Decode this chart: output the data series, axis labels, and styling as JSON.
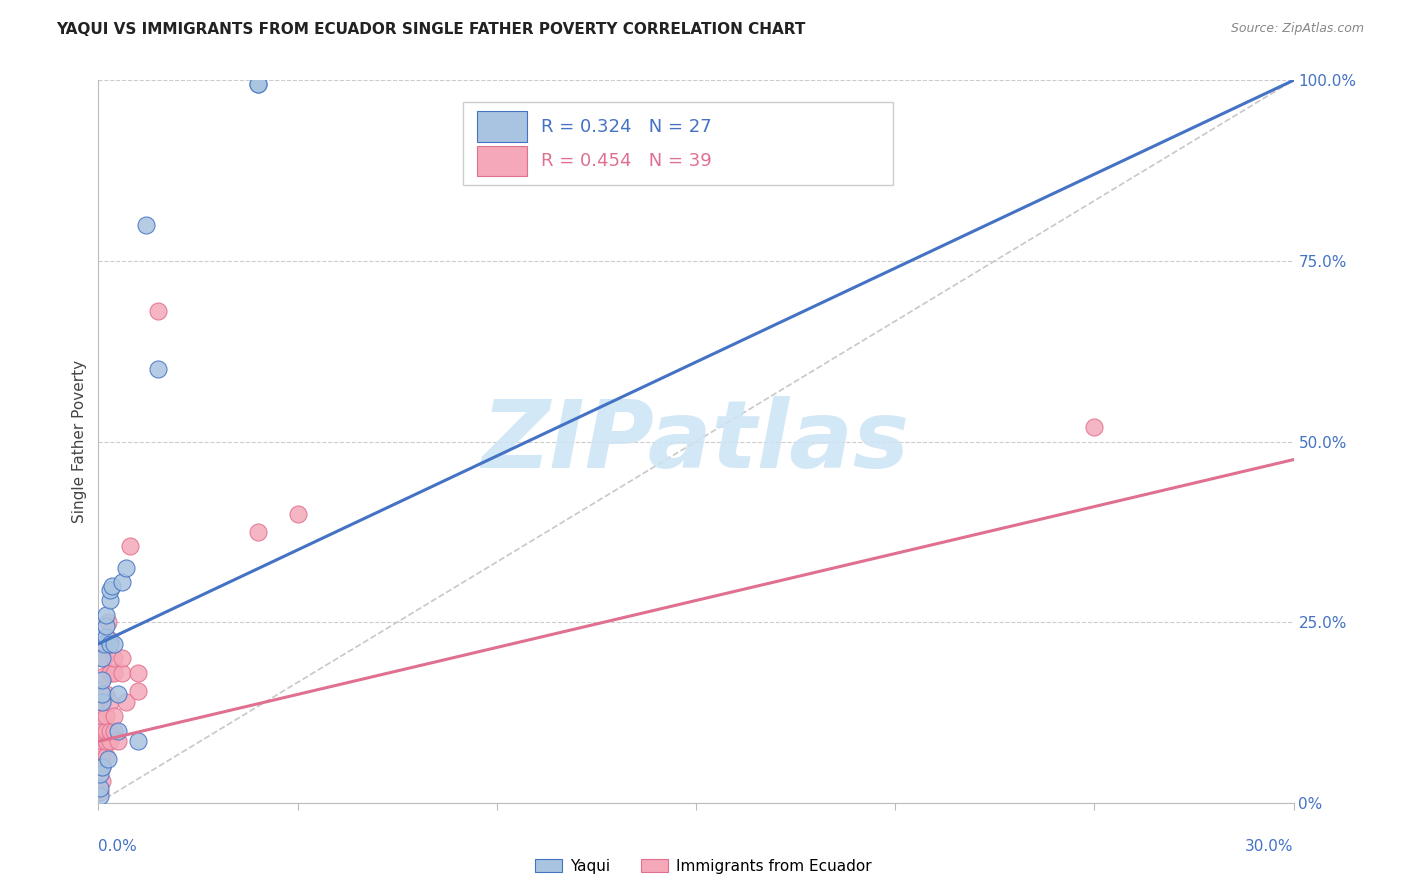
{
  "title": "YAQUI VS IMMIGRANTS FROM ECUADOR SINGLE FATHER POVERTY CORRELATION CHART",
  "source": "Source: ZipAtlas.com",
  "ylabel": "Single Father Poverty",
  "ylabel_right_labels": [
    "0%",
    "25.0%",
    "50.0%",
    "75.0%",
    "100.0%"
  ],
  "ylabel_right_values": [
    0.0,
    0.25,
    0.5,
    0.75,
    1.0
  ],
  "xmin": 0.0,
  "xmax": 0.3,
  "ymin": 0.0,
  "ymax": 1.0,
  "yaqui_R": 0.324,
  "yaqui_N": 27,
  "ecuador_R": 0.454,
  "ecuador_N": 39,
  "yaqui_color": "#a8c4e0",
  "ecuador_color": "#f4a8b8",
  "yaqui_line_color": "#4472c4",
  "ecuador_line_color": "#e07090",
  "diagonal_color": "#c8c8c8",
  "yaqui_line": [
    0.0,
    0.22,
    0.3,
    1.0
  ],
  "ecuador_line": [
    0.0,
    0.085,
    0.3,
    0.475
  ],
  "yaqui_points": [
    [
      0.0005,
      0.01
    ],
    [
      0.0005,
      0.02
    ],
    [
      0.0005,
      0.04
    ],
    [
      0.001,
      0.05
    ],
    [
      0.001,
      0.14
    ],
    [
      0.001,
      0.15
    ],
    [
      0.001,
      0.17
    ],
    [
      0.001,
      0.2
    ],
    [
      0.0015,
      0.22
    ],
    [
      0.002,
      0.23
    ],
    [
      0.002,
      0.245
    ],
    [
      0.002,
      0.26
    ],
    [
      0.0025,
      0.06
    ],
    [
      0.003,
      0.22
    ],
    [
      0.003,
      0.28
    ],
    [
      0.003,
      0.295
    ],
    [
      0.0035,
      0.3
    ],
    [
      0.004,
      0.22
    ],
    [
      0.005,
      0.1
    ],
    [
      0.005,
      0.15
    ],
    [
      0.006,
      0.305
    ],
    [
      0.007,
      0.325
    ],
    [
      0.01,
      0.085
    ],
    [
      0.012,
      0.8
    ],
    [
      0.015,
      0.6
    ],
    [
      0.04,
      0.995
    ],
    [
      0.04,
      0.995
    ]
  ],
  "ecuador_points": [
    [
      0.0005,
      0.015
    ],
    [
      0.001,
      0.03
    ],
    [
      0.001,
      0.05
    ],
    [
      0.001,
      0.065
    ],
    [
      0.001,
      0.075
    ],
    [
      0.001,
      0.085
    ],
    [
      0.001,
      0.1
    ],
    [
      0.001,
      0.12
    ],
    [
      0.001,
      0.14
    ],
    [
      0.0015,
      0.175
    ],
    [
      0.0015,
      0.2
    ],
    [
      0.002,
      0.065
    ],
    [
      0.002,
      0.085
    ],
    [
      0.002,
      0.1
    ],
    [
      0.002,
      0.12
    ],
    [
      0.002,
      0.15
    ],
    [
      0.002,
      0.22
    ],
    [
      0.0025,
      0.225
    ],
    [
      0.0025,
      0.25
    ],
    [
      0.003,
      0.085
    ],
    [
      0.003,
      0.1
    ],
    [
      0.003,
      0.14
    ],
    [
      0.003,
      0.18
    ],
    [
      0.003,
      0.225
    ],
    [
      0.004,
      0.1
    ],
    [
      0.004,
      0.12
    ],
    [
      0.004,
      0.18
    ],
    [
      0.004,
      0.2
    ],
    [
      0.005,
      0.085
    ],
    [
      0.006,
      0.18
    ],
    [
      0.006,
      0.2
    ],
    [
      0.007,
      0.14
    ],
    [
      0.008,
      0.355
    ],
    [
      0.01,
      0.155
    ],
    [
      0.01,
      0.18
    ],
    [
      0.015,
      0.68
    ],
    [
      0.04,
      0.375
    ],
    [
      0.05,
      0.4
    ],
    [
      0.25,
      0.52
    ]
  ],
  "watermark_text": "ZIPatlas",
  "watermark_color": "#cce4f5",
  "watermark_fontsize": 68
}
